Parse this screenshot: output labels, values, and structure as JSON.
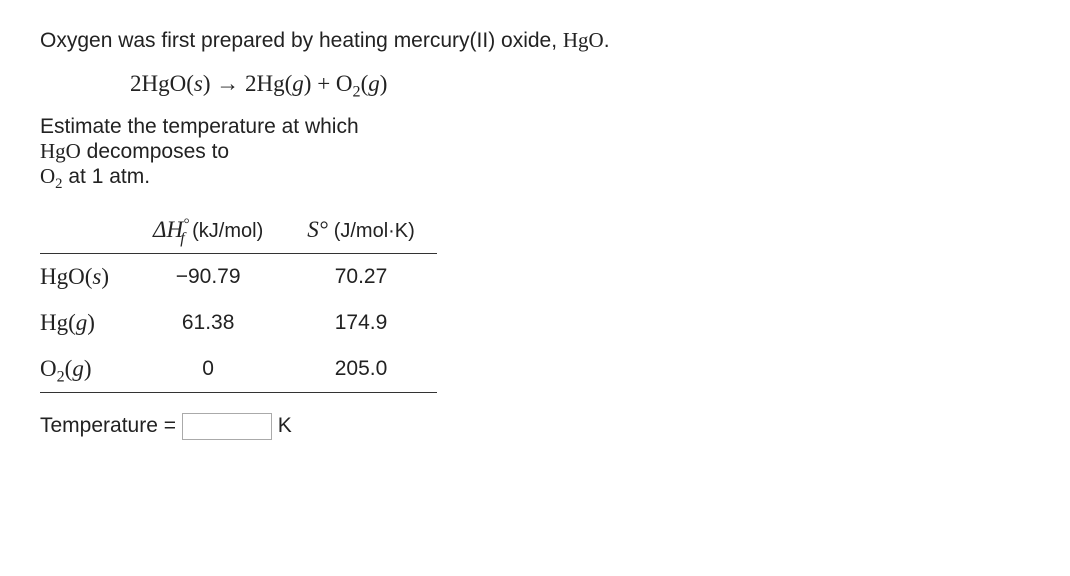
{
  "intro_pre": "Oxygen was first prepared by heating mercury(II) oxide, ",
  "intro_formula": "HgO",
  "intro_post": ".",
  "equation": "2HgO(<i>s</i>) → 2Hg(<i>g</i>) + O<sub>2</sub>(<i>g</i>)",
  "prompt_line1": "Estimate the temperature at which",
  "prompt_line2_pre": "",
  "prompt_line2_formula": "HgO",
  "prompt_line2_post": " decomposes to",
  "prompt_line3_formula": "O<sub>2</sub>",
  "prompt_line3_post": " at 1 atm.",
  "table": {
    "col1_html": "Δ<i>H</i><sup class=\"upper\">°</sup><sub style=\"position:relative;left:-0.55em;margin-right:-0.45em;\"><i>f</i></sub> <span class=\"unit\">(kJ/mol)</span>",
    "col2_html": "<i>S</i>° <span class=\"unit\">(J/mol·K)</span>",
    "rows": [
      {
        "species_html": "HgO(<i>s</i>)",
        "dhf": "−90.79",
        "s": "70.27"
      },
      {
        "species_html": "Hg(<i>g</i>)",
        "dhf": "61.38",
        "s": "174.9"
      },
      {
        "species_html": "O<sub>2</sub>(<i>g</i>)",
        "dhf": "0",
        "s": "205.0"
      }
    ]
  },
  "answer_label": "Temperature =",
  "answer_unit": "K",
  "answer_value": ""
}
